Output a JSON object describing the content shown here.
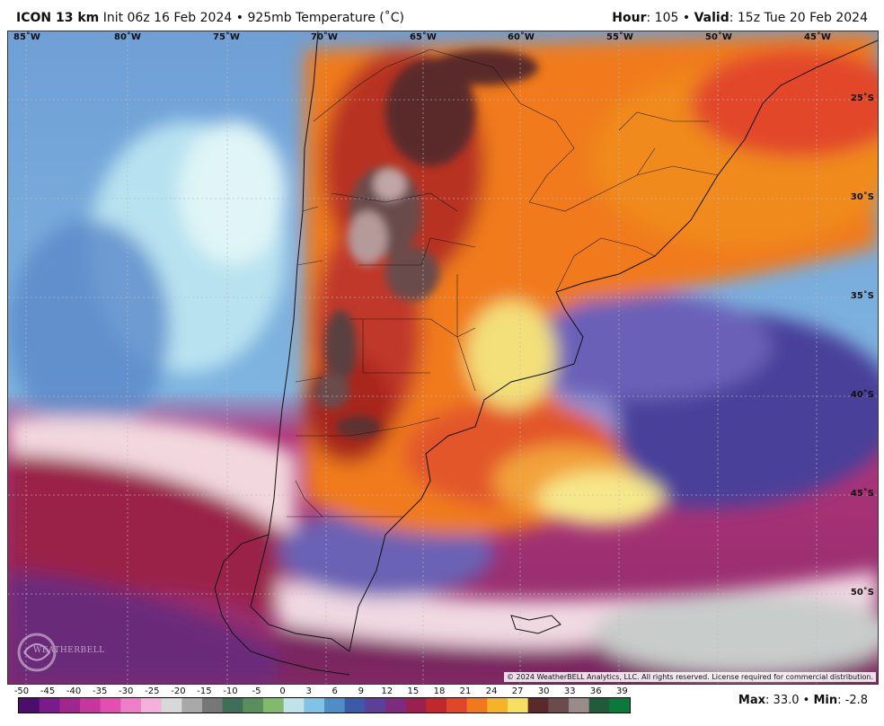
{
  "header": {
    "model": "ICON 13 km",
    "init": "Init 06z 16 Feb 2024",
    "separator": "•",
    "field": "925mb Temperature (˚C)",
    "hour_label": "Hour",
    "hour_value": ": 105",
    "valid_label": "Valid",
    "valid_value": ": 15z Tue 20 Feb 2024"
  },
  "map": {
    "lon_labels": [
      "85˚W",
      "80˚W",
      "75˚W",
      "70˚W",
      "65˚W",
      "60˚W",
      "55˚W",
      "50˚W",
      "45˚W"
    ],
    "lat_labels": [
      "25˚S",
      "30˚S",
      "35˚S",
      "40˚S",
      "45˚S",
      "50˚S"
    ],
    "copyright": "© 2024 WeatherBELL Analytics, LLC. All rights reserved. License required for commercial distribution.",
    "logo_text": "WEATHERBELL"
  },
  "colorbar": {
    "ticks": [
      "-50",
      "-45",
      "-40",
      "-35",
      "-30",
      "-25",
      "-20",
      "-15",
      "-10",
      "-5",
      "0",
      "3",
      "6",
      "9",
      "12",
      "15",
      "18",
      "21",
      "24",
      "27",
      "30",
      "33",
      "36",
      "39"
    ],
    "colors": [
      "#4b0f6b",
      "#7a1b8c",
      "#a0268f",
      "#c7359f",
      "#e24fb0",
      "#ee7fc7",
      "#f3b0db",
      "#d8d8d8",
      "#a8a8a8",
      "#777777",
      "#3f6f5a",
      "#5b8e5d",
      "#82b96a",
      "#bfe3e8",
      "#7fc4e6",
      "#4e8ec7",
      "#3d5aa8",
      "#5b3f98",
      "#7e2b7f",
      "#9a2050",
      "#c0282c",
      "#e2462a",
      "#f07a1b",
      "#f7b328",
      "#f6e060",
      "#5a2a2a",
      "#6b4b4b",
      "#9b8a8a",
      "#1f5a3a",
      "#0a7a3a"
    ]
  },
  "stats": {
    "max_label": "Max",
    "max_value": ": 33.0",
    "sep": "•",
    "min_label": "Min",
    "min_value": ": -2.8"
  }
}
